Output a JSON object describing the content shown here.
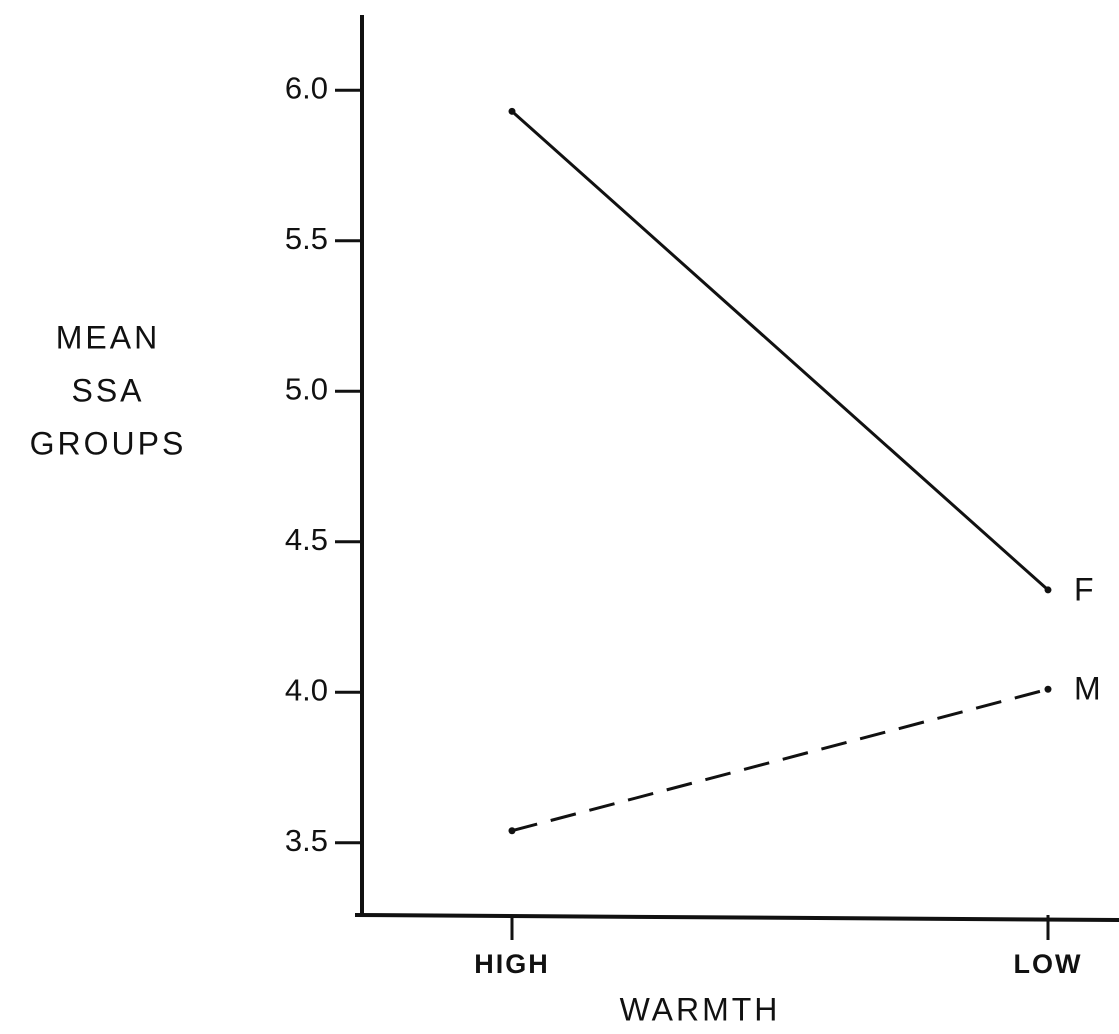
{
  "chart_data": {
    "type": "line",
    "ylabel": [
      "MEAN",
      "SSA",
      "GROUPS"
    ],
    "xlabel": "WARMTH",
    "categories": [
      "HIGH",
      "LOW"
    ],
    "series": [
      {
        "name": "F",
        "color": "#111111",
        "dash": false,
        "values": [
          5.93,
          4.34
        ]
      },
      {
        "name": "M",
        "color": "#111111",
        "dash": true,
        "values": [
          3.54,
          4.01
        ]
      }
    ],
    "ylim": [
      3.26,
      6.25
    ],
    "yticks": [
      {
        "value": 3.5,
        "label": "3.5"
      },
      {
        "value": 4.0,
        "label": "4.0"
      },
      {
        "value": 4.5,
        "label": "4.5"
      },
      {
        "value": 5.0,
        "label": "5.0"
      },
      {
        "value": 5.5,
        "label": "5.5"
      },
      {
        "value": 6.0,
        "label": "6.0"
      }
    ]
  }
}
